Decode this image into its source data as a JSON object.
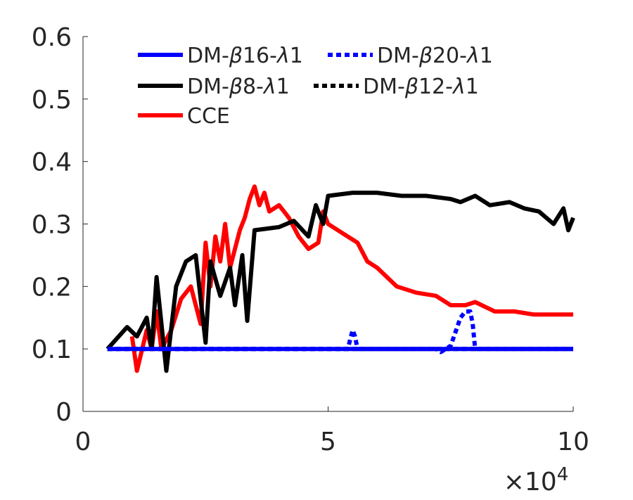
{
  "chart_data": {
    "type": "line",
    "title": "",
    "xlabel": "",
    "ylabel": "",
    "x_exponent_label": "×10⁴",
    "x_exponent_base": "×10",
    "x_exponent_power": "4",
    "xlim": [
      0,
      10
    ],
    "ylim": [
      0,
      0.6
    ],
    "xticks": [
      0,
      5,
      10
    ],
    "xtick_labels": [
      "0",
      "5",
      "10"
    ],
    "yticks": [
      0,
      0.1,
      0.2,
      0.3,
      0.4,
      0.5,
      0.6
    ],
    "ytick_labels": [
      "0",
      "0.1",
      "0.2",
      "0.3",
      "0.4",
      "0.5",
      "0.6"
    ],
    "grid": false,
    "legend_position": "top",
    "series": [
      {
        "name": "DM-β16-λ1",
        "legend_parts": [
          "DM-",
          "β",
          "16-",
          "λ",
          "1"
        ],
        "color": "#0000ff",
        "dash": "solid",
        "x": [
          0.5,
          10
        ],
        "y": [
          0.1,
          0.1
        ]
      },
      {
        "name": "DM-β20-λ1",
        "legend_parts": [
          "DM-",
          "β",
          "20-",
          "λ",
          "1"
        ],
        "color": "#0000ff",
        "dash": "dotted",
        "x": [
          0.5,
          5.4,
          5.5,
          5.55,
          5.6,
          7.2,
          7.3,
          7.5,
          7.7,
          7.8,
          7.9,
          7.95,
          8.0,
          8.1,
          10
        ],
        "y": [
          0.1,
          0.1,
          0.13,
          0.12,
          0.1,
          0.1,
          0.095,
          0.105,
          0.15,
          0.16,
          0.16,
          0.14,
          0.1,
          0.1,
          0.1
        ]
      },
      {
        "name": "DM-β8-λ1",
        "legend_parts": [
          "DM-",
          "β",
          "8-",
          "λ",
          "1"
        ],
        "color": "#000000",
        "dash": "solid",
        "x": [
          0.5,
          0.9,
          1.1,
          1.3,
          1.4,
          1.5,
          1.7,
          1.9,
          2.1,
          2.3,
          2.5,
          2.6,
          2.8,
          3.0,
          3.1,
          3.25,
          3.35,
          3.5,
          4.0,
          4.3,
          4.6,
          4.75,
          4.9,
          5.0,
          5.5,
          6.0,
          6.5,
          7.0,
          7.5,
          7.7,
          8.0,
          8.3,
          8.7,
          9.0,
          9.3,
          9.6,
          9.8,
          9.9,
          10.0
        ],
        "y": [
          0.1,
          0.135,
          0.12,
          0.15,
          0.1,
          0.215,
          0.065,
          0.2,
          0.24,
          0.25,
          0.11,
          0.24,
          0.185,
          0.23,
          0.17,
          0.25,
          0.145,
          0.29,
          0.295,
          0.305,
          0.28,
          0.33,
          0.3,
          0.345,
          0.35,
          0.35,
          0.345,
          0.345,
          0.34,
          0.335,
          0.345,
          0.33,
          0.335,
          0.325,
          0.32,
          0.3,
          0.325,
          0.29,
          0.31
        ]
      },
      {
        "name": "DM-β12-λ1",
        "legend_parts": [
          "DM-",
          "β",
          "12-",
          "λ",
          "1"
        ],
        "color": "#000000",
        "dash": "dotted",
        "x": [
          0.5,
          10
        ],
        "y": [
          0.1,
          0.1
        ]
      },
      {
        "name": "CCE",
        "legend_parts": [
          "CCE"
        ],
        "color": "#ff0000",
        "dash": "solid",
        "x": [
          1.0,
          1.1,
          1.3,
          1.4,
          1.5,
          1.6,
          1.8,
          2.0,
          2.2,
          2.4,
          2.5,
          2.6,
          2.7,
          2.8,
          2.9,
          3.0,
          3.2,
          3.3,
          3.4,
          3.5,
          3.6,
          3.7,
          3.8,
          4.0,
          4.2,
          4.4,
          4.6,
          4.8,
          4.9,
          5.0,
          5.2,
          5.4,
          5.6,
          5.8,
          6.0,
          6.4,
          6.8,
          7.2,
          7.5,
          7.8,
          8.0,
          8.4,
          8.8,
          9.2,
          9.6,
          10.0
        ],
        "y": [
          0.12,
          0.065,
          0.13,
          0.1,
          0.16,
          0.1,
          0.13,
          0.18,
          0.2,
          0.14,
          0.27,
          0.2,
          0.28,
          0.24,
          0.3,
          0.23,
          0.29,
          0.31,
          0.34,
          0.36,
          0.33,
          0.35,
          0.32,
          0.33,
          0.31,
          0.28,
          0.26,
          0.27,
          0.32,
          0.3,
          0.29,
          0.28,
          0.27,
          0.24,
          0.23,
          0.2,
          0.19,
          0.185,
          0.17,
          0.17,
          0.175,
          0.16,
          0.16,
          0.155,
          0.155,
          0.155
        ]
      }
    ]
  }
}
